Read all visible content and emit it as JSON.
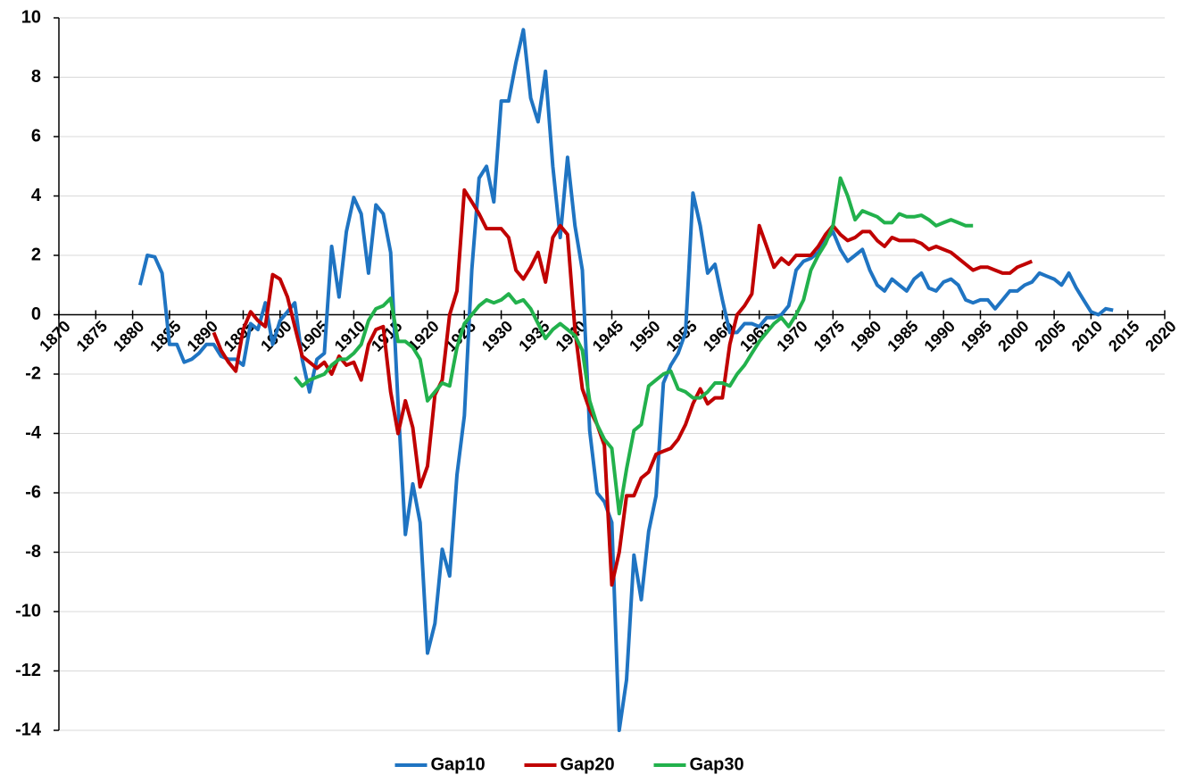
{
  "chart_data": {
    "type": "line",
    "x": [
      1881,
      1882,
      1883,
      1884,
      1885,
      1886,
      1887,
      1888,
      1889,
      1890,
      1891,
      1892,
      1893,
      1894,
      1895,
      1896,
      1897,
      1898,
      1899,
      1900,
      1901,
      1902,
      1903,
      1904,
      1905,
      1906,
      1907,
      1908,
      1909,
      1910,
      1911,
      1912,
      1913,
      1914,
      1915,
      1916,
      1917,
      1918,
      1919,
      1920,
      1921,
      1922,
      1923,
      1924,
      1925,
      1926,
      1927,
      1928,
      1929,
      1930,
      1931,
      1932,
      1933,
      1934,
      1935,
      1936,
      1937,
      1938,
      1939,
      1940,
      1941,
      1942,
      1943,
      1944,
      1945,
      1946,
      1947,
      1948,
      1949,
      1950,
      1951,
      1952,
      1953,
      1954,
      1955,
      1956,
      1957,
      1958,
      1959,
      1960,
      1961,
      1962,
      1963,
      1964,
      1965,
      1966,
      1967,
      1968,
      1969,
      1970,
      1971,
      1972,
      1973,
      1974,
      1975,
      1976,
      1977,
      1978,
      1979,
      1980,
      1981,
      1982,
      1983,
      1984,
      1985,
      1986,
      1987,
      1988,
      1989,
      1990,
      1991,
      1992,
      1993,
      1994,
      1995,
      1996,
      1997,
      1998,
      1999,
      2000,
      2001,
      2002,
      2003,
      2004,
      2005,
      2006,
      2007,
      2008,
      2009,
      2010,
      2011,
      2012,
      2013
    ],
    "series": [
      {
        "name": "Gap10",
        "color": "#1f74c2",
        "values": [
          1.0,
          2.0,
          1.95,
          1.4,
          -1.0,
          -1.0,
          -1.6,
          -1.5,
          -1.3,
          -1.0,
          -1.0,
          -1.4,
          -1.5,
          -1.5,
          -1.7,
          -0.3,
          -0.5,
          0.4,
          -1.0,
          -0.2,
          0.1,
          0.4,
          -1.5,
          -2.6,
          -1.5,
          -1.3,
          2.3,
          0.6,
          2.8,
          3.95,
          3.4,
          1.4,
          3.7,
          3.4,
          2.1,
          -3.0,
          -7.4,
          -5.7,
          -7.0,
          -11.4,
          -10.4,
          -7.9,
          -8.8,
          -5.4,
          -3.4,
          1.5,
          4.6,
          5.0,
          3.8,
          7.2,
          7.2,
          8.5,
          9.6,
          7.3,
          6.5,
          8.2,
          5.0,
          2.6,
          5.3,
          3.0,
          1.5,
          -3.9,
          -6.0,
          -6.3,
          -7.0,
          -14.0,
          -12.3,
          -8.1,
          -9.6,
          -7.3,
          -6.1,
          -2.3,
          -1.7,
          -1.3,
          -0.6,
          4.1,
          3.0,
          1.4,
          1.7,
          0.5,
          -0.6,
          -0.6,
          -0.3,
          -0.3,
          -0.4,
          -0.1,
          -0.1,
          0.0,
          0.3,
          1.5,
          1.8,
          1.9,
          2.1,
          2.5,
          2.8,
          2.2,
          1.8,
          2.0,
          2.2,
          1.5,
          1.0,
          0.8,
          1.2,
          1.0,
          0.8,
          1.2,
          1.4,
          0.9,
          0.8,
          1.1,
          1.2,
          1.0,
          0.5,
          0.4,
          0.5,
          0.5,
          0.2,
          0.5,
          0.8,
          0.8,
          1.0,
          1.1,
          1.4,
          1.3,
          1.2,
          1.0,
          1.4,
          0.9,
          0.5,
          0.1,
          0.0,
          0.2,
          0.15
        ]
      },
      {
        "name": "Gap20",
        "color": "#c00000",
        "values": [
          null,
          null,
          null,
          null,
          null,
          null,
          null,
          null,
          null,
          null,
          -0.6,
          -1.2,
          -1.6,
          -1.9,
          -0.5,
          0.1,
          -0.2,
          -0.4,
          1.35,
          1.2,
          0.6,
          -0.4,
          -1.4,
          -1.6,
          -1.8,
          -1.6,
          -2.0,
          -1.4,
          -1.7,
          -1.6,
          -2.2,
          -1.0,
          -0.5,
          -0.4,
          -2.6,
          -4.0,
          -2.9,
          -3.8,
          -5.8,
          -5.1,
          -2.7,
          -2.2,
          0.0,
          0.8,
          4.2,
          3.8,
          3.4,
          2.9,
          2.9,
          2.9,
          2.6,
          1.5,
          1.2,
          1.6,
          2.1,
          1.1,
          2.6,
          3.0,
          2.7,
          -0.5,
          -2.5,
          -3.2,
          -3.7,
          -4.4,
          -9.1,
          -8.0,
          -6.1,
          -6.1,
          -5.5,
          -5.3,
          -4.7,
          -4.6,
          -4.5,
          -4.2,
          -3.7,
          -3.0,
          -2.5,
          -3.0,
          -2.8,
          -2.8,
          -1.0,
          0.0,
          0.3,
          0.7,
          3.0,
          2.3,
          1.6,
          1.9,
          1.7,
          2.0,
          2.0,
          2.0,
          2.3,
          2.7,
          3.0,
          2.7,
          2.5,
          2.6,
          2.8,
          2.8,
          2.5,
          2.3,
          2.6,
          2.5,
          2.5,
          2.5,
          2.4,
          2.2,
          2.3,
          2.2,
          2.1,
          1.9,
          1.7,
          1.5,
          1.6,
          1.6,
          1.5,
          1.4,
          1.4,
          1.6,
          1.7,
          1.8,
          null,
          null,
          null,
          null,
          null,
          null,
          null,
          null,
          null,
          null,
          null
        ]
      },
      {
        "name": "Gap30",
        "color": "#22b14c",
        "values": [
          null,
          null,
          null,
          null,
          null,
          null,
          null,
          null,
          null,
          null,
          null,
          null,
          null,
          null,
          null,
          null,
          null,
          null,
          null,
          null,
          null,
          -2.1,
          -2.4,
          -2.2,
          -2.1,
          -2.0,
          -1.7,
          -1.5,
          -1.5,
          -1.3,
          -1.0,
          -0.2,
          0.2,
          0.3,
          0.55,
          -0.9,
          -0.9,
          -1.1,
          -1.5,
          -2.9,
          -2.6,
          -2.3,
          -2.4,
          -1.1,
          -0.3,
          0.0,
          0.3,
          0.5,
          0.4,
          0.5,
          0.7,
          0.4,
          0.5,
          0.2,
          -0.3,
          -0.8,
          -0.5,
          -0.3,
          -0.5,
          -0.7,
          -1.2,
          -2.9,
          -3.7,
          -4.2,
          -4.5,
          -6.7,
          -5.2,
          -3.9,
          -3.7,
          -2.4,
          -2.2,
          -2.0,
          -1.9,
          -2.5,
          -2.6,
          -2.8,
          -2.8,
          -2.6,
          -2.3,
          -2.3,
          -2.4,
          -2.0,
          -1.7,
          -1.3,
          -0.9,
          -0.6,
          -0.3,
          -0.1,
          -0.4,
          0.0,
          0.5,
          1.5,
          2.0,
          2.4,
          3.0,
          4.6,
          4.0,
          3.2,
          3.5,
          3.4,
          3.3,
          3.1,
          3.1,
          3.4,
          3.3,
          3.3,
          3.35,
          3.2,
          3.0,
          3.1,
          3.2,
          3.1,
          3.0,
          3.0,
          null,
          null,
          null,
          null,
          null,
          null,
          null,
          null,
          null,
          null,
          null,
          null,
          null,
          null,
          null,
          null,
          null,
          null,
          null
        ]
      }
    ],
    "xlim": [
      1870,
      2020
    ],
    "xticks": [
      1870,
      1875,
      1880,
      1885,
      1890,
      1895,
      1900,
      1905,
      1910,
      1915,
      1920,
      1925,
      1930,
      1935,
      1940,
      1945,
      1950,
      1955,
      1960,
      1965,
      1970,
      1975,
      1980,
      1985,
      1990,
      1995,
      2000,
      2005,
      2010,
      2015,
      2020
    ],
    "ylim": [
      -14,
      10
    ],
    "yticks": [
      -14,
      -12,
      -10,
      -8,
      -6,
      -4,
      -2,
      0,
      2,
      4,
      6,
      8,
      10
    ],
    "grid": true,
    "legend": "bottom"
  }
}
